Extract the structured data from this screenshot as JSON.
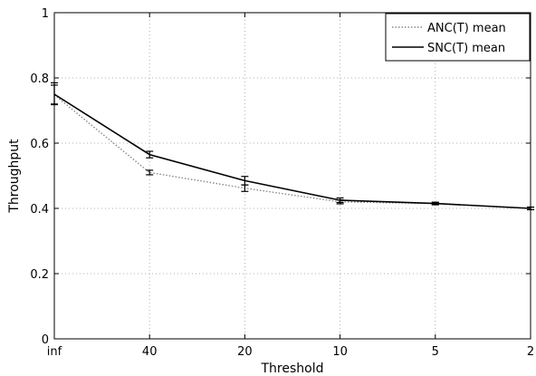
{
  "chart_data": {
    "type": "line",
    "title": "",
    "xlabel": "Threshold",
    "ylabel": "Throughput",
    "categories": [
      "inf",
      "40",
      "20",
      "10",
      "5",
      "2"
    ],
    "ylim": [
      0,
      1
    ],
    "yticks": [
      "0",
      "0.2",
      "0.4",
      "0.6",
      "0.8",
      "1"
    ],
    "grid": true,
    "legend_position": "top-right",
    "series": [
      {
        "name": "ANC(T) mean",
        "style": "dotted",
        "color": "#888888",
        "values": [
          0.748,
          0.51,
          0.462,
          0.42,
          0.415,
          0.4
        ],
        "err_low": [
          0.718,
          0.503,
          0.452,
          0.414,
          0.412,
          0.396
        ],
        "err_high": [
          0.778,
          0.517,
          0.472,
          0.426,
          0.418,
          0.404
        ]
      },
      {
        "name": "SNC(T) mean",
        "style": "solid",
        "color": "#000000",
        "values": [
          0.75,
          0.565,
          0.485,
          0.425,
          0.415,
          0.4
        ],
        "err_low": [
          0.72,
          0.555,
          0.472,
          0.418,
          0.411,
          0.396
        ],
        "err_high": [
          0.785,
          0.575,
          0.498,
          0.432,
          0.419,
          0.404
        ]
      }
    ]
  }
}
